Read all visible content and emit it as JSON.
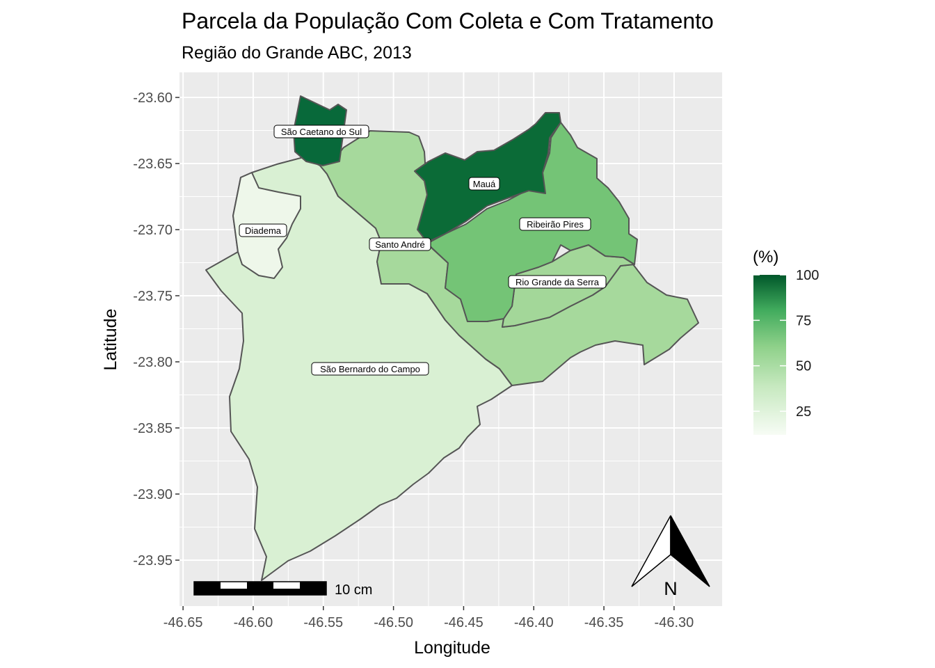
{
  "chart_data": {
    "type": "map",
    "title": "Parcela da População Com Coleta e Com Tratamento",
    "subtitle": "Região do Grande ABC, 2013",
    "xlabel": "Longitude",
    "ylabel": "Latitude",
    "x_ticks": [
      "-46.65",
      "-46.60",
      "-46.55",
      "-46.50",
      "-46.45",
      "-46.40",
      "-46.35",
      "-46.30"
    ],
    "y_ticks": [
      "-23.60",
      "-23.65",
      "-23.70",
      "-23.75",
      "-23.80",
      "-23.85",
      "-23.90",
      "-23.95"
    ],
    "xlim": [
      -46.67,
      -46.26
    ],
    "ylim": [
      -23.98,
      -23.58
    ],
    "grid": true,
    "legend": {
      "title": "(%)",
      "ticks": [
        "100",
        "75",
        "50",
        "25"
      ],
      "tick_values": [
        100,
        75,
        50,
        25
      ],
      "range": [
        12,
        100
      ],
      "low_color": "#f7fcf5",
      "high_color": "#00441b",
      "placement": "right"
    },
    "regions": [
      {
        "name": "São Bernardo do Campo",
        "value": 20,
        "color": "#d9f0d3"
      },
      {
        "name": "Diadema",
        "value": 12,
        "color": "#eef7ea"
      },
      {
        "name": "Santo André",
        "value": 42,
        "color": "#a6d99c"
      },
      {
        "name": "Rio Grande da Serra",
        "value": 42,
        "color": "#a3d799"
      },
      {
        "name": "Ribeirão Pires",
        "value": 57,
        "color": "#74c476"
      },
      {
        "name": "Mauá",
        "value": 98,
        "color": "#0b6b37"
      },
      {
        "name": "São Caetano do Sul",
        "value": 100,
        "color": "#08693a"
      }
    ],
    "scale_bar": {
      "label": "10 cm"
    },
    "north_arrow": {
      "label": "N"
    }
  },
  "colors": {
    "panel_bg": "#ebebeb",
    "grid": "#ffffff",
    "border": "#555555"
  }
}
